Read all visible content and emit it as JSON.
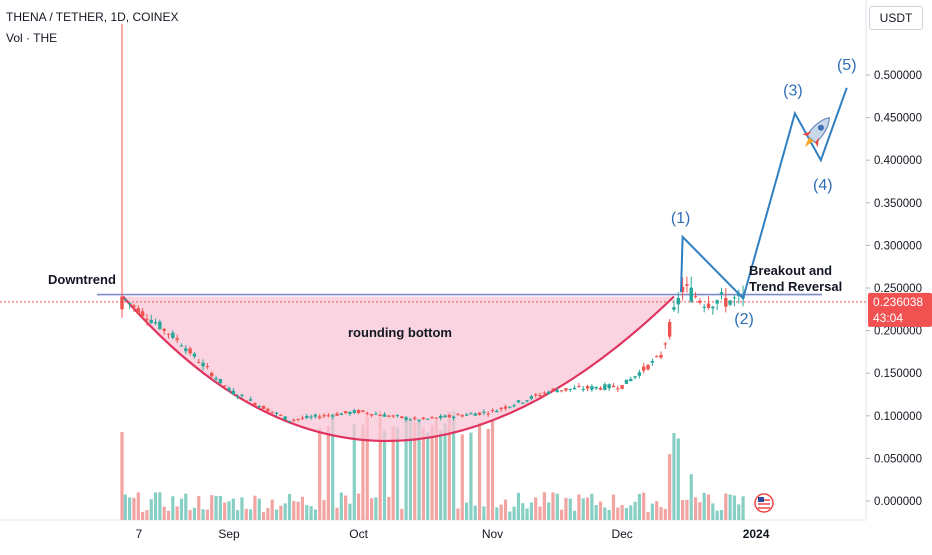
{
  "header": {
    "title": "THENA / TETHER, 1D, COINEX",
    "volume_label": "Vol · THE"
  },
  "price_axis": {
    "currency": "USDT",
    "current_price": "0.236038",
    "countdown": "43:04"
  },
  "colors": {
    "up": "#26a69a",
    "down": "#ef5350",
    "vol_up": "#87cfc4",
    "vol_down": "#f2a4a2",
    "bowl_fill": "#f8c6d6",
    "bowl_line": "#e0335f",
    "wave": "#2f7fc1",
    "wave_label": "#2f6db5",
    "neckline": "#7c8cc9",
    "price_tag": "#f25151"
  },
  "annotations": {
    "downtrend": "Downtrend",
    "rounding_bottom": "rounding bottom",
    "breakout_line1": "Breakout and",
    "breakout_line2": "Trend Reversal"
  },
  "chart_data": {
    "type": "candlestick",
    "title": "THENA / TETHER, 1D, COINEX",
    "y_axis": {
      "ticks": [
        "0.500000",
        "0.450000",
        "0.400000",
        "0.350000",
        "0.300000",
        "0.250000",
        "0.200000",
        "0.150000",
        "0.100000",
        "0.050000",
        "0.000000"
      ],
      "range": [
        0,
        0.55
      ]
    },
    "x_axis": {
      "ticks": [
        "7",
        "Sep",
        "Oct",
        "Nov",
        "Dec",
        "2024"
      ],
      "tick_dates": [
        "2023-08-07",
        "2023-09-01",
        "2023-10-01",
        "2023-11-01",
        "2023-12-01",
        "2024-01-01"
      ],
      "range": [
        "2023-08-03",
        "2024-01-29"
      ]
    },
    "series": [
      {
        "kind": "price",
        "approx_path": [
          {
            "date": "2023-08-07",
            "price": 0.24
          },
          {
            "date": "2023-08-20",
            "price": 0.19
          },
          {
            "date": "2023-09-01",
            "price": 0.13
          },
          {
            "date": "2023-09-15",
            "price": 0.095
          },
          {
            "date": "2023-10-01",
            "price": 0.105
          },
          {
            "date": "2023-10-15",
            "price": 0.095
          },
          {
            "date": "2023-11-01",
            "price": 0.105
          },
          {
            "date": "2023-11-15",
            "price": 0.13
          },
          {
            "date": "2023-12-01",
            "price": 0.135
          },
          {
            "date": "2023-12-10",
            "price": 0.17
          },
          {
            "date": "2023-12-15",
            "price": 0.25
          },
          {
            "date": "2023-12-20",
            "price": 0.235
          },
          {
            "date": "2023-12-29",
            "price": 0.236
          }
        ]
      },
      {
        "kind": "projection",
        "points": [
          {
            "label": "(1)",
            "date": "2023-12-15",
            "price": 0.31
          },
          {
            "label": "(2)",
            "date": "2023-12-29",
            "price": 0.238
          },
          {
            "label": "(3)",
            "date": "2024-01-10",
            "price": 0.455
          },
          {
            "label": "(4)",
            "date": "2024-01-16",
            "price": 0.4
          },
          {
            "label": "(5)",
            "date": "2024-01-22",
            "price": 0.485
          }
        ]
      }
    ],
    "neckline_price": 0.24,
    "current_price": 0.236038
  }
}
